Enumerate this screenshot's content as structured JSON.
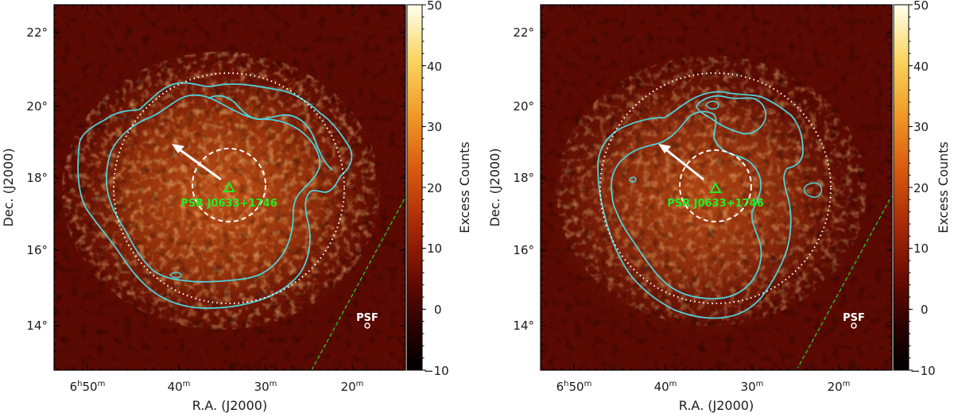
{
  "chart_data": [
    {
      "type": "heatmap",
      "panel": "left",
      "xlabel": "R.A. (J2000)",
      "ylabel": "Dec. (J2000)",
      "colorbar_label": "Excess Counts",
      "colorbar_ticks": [
        "50",
        "40",
        "30",
        "20",
        "10",
        "0",
        "−10"
      ],
      "colorbar_range": [
        -10,
        50
      ],
      "ra_ticks": [
        {
          "h": "6",
          "m": "50",
          "sup_h": "h",
          "sup_m": "m"
        },
        {
          "m": "40",
          "sup_m": "m"
        },
        {
          "m": "30",
          "sup_m": "m"
        },
        {
          "m": "20",
          "sup_m": "m"
        }
      ],
      "dec_ticks": [
        "22°",
        "20°",
        "18°",
        "16°",
        "14°"
      ],
      "source_label": "PSR J0633+1746",
      "psf_label": "PSF",
      "arrow": "white arrow pointing north-east from pulsar",
      "circles": [
        "white dashed inner circle",
        "white dotted outer circle"
      ],
      "contours": "cyan contours",
      "galactic_plane": "green dashed line"
    },
    {
      "type": "heatmap",
      "panel": "right",
      "xlabel": "R.A. (J2000)",
      "ylabel": "Dec. (J2000)",
      "colorbar_label": "Excess Counts",
      "colorbar_ticks": [
        "50",
        "40",
        "30",
        "20",
        "10",
        "0",
        "−10"
      ],
      "colorbar_range": [
        -10,
        50
      ],
      "ra_ticks": [
        {
          "h": "6",
          "m": "50",
          "sup_h": "h",
          "sup_m": "m"
        },
        {
          "m": "40",
          "sup_m": "m"
        },
        {
          "m": "30",
          "sup_m": "m"
        },
        {
          "m": "20",
          "sup_m": "m"
        }
      ],
      "dec_ticks": [
        "22°",
        "20°",
        "18°",
        "16°",
        "14°"
      ],
      "source_label": "PSR J0633+1746",
      "psf_label": "PSF",
      "arrow": "white arrow pointing north-east from pulsar",
      "circles": [
        "white dashed inner circle",
        "white dotted outer circle"
      ],
      "contours": "cyan contours",
      "galactic_plane": "green dashed line"
    }
  ],
  "colors": {
    "background_map": "#5a0a02",
    "contour": "#4fd0d8",
    "source": "#22ee22",
    "galactic_plane": "#22cc22",
    "annotation": "#ffffff"
  }
}
